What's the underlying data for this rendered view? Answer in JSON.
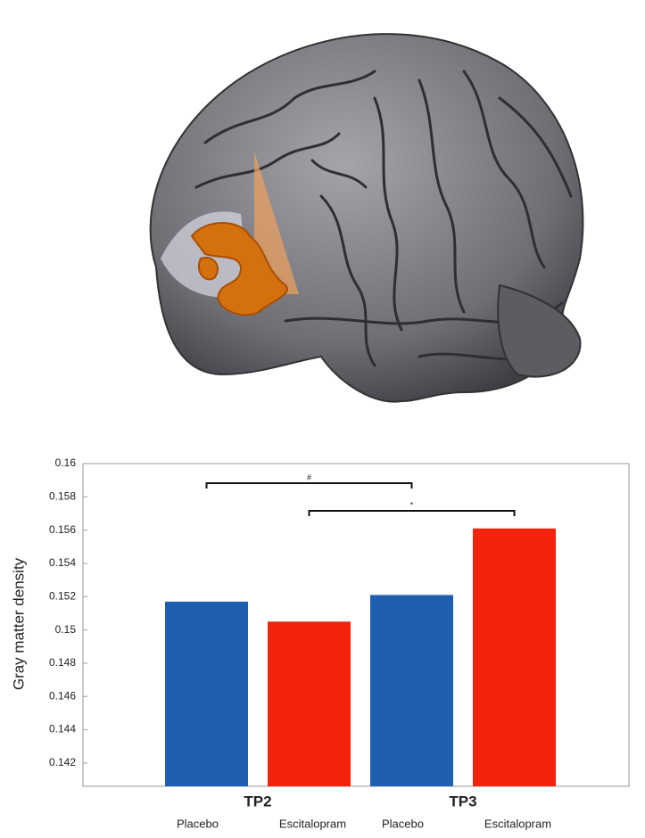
{
  "chart_data": {
    "type": "bar",
    "y_label": "Gray matter density",
    "categories": [
      "TP2",
      "TP3"
    ],
    "series": [
      {
        "name": "Placebo",
        "color": "#1f5fb2",
        "values": [
          0.1517,
          0.1521
        ]
      },
      {
        "name": "Escitalopram",
        "color": "#f5220c",
        "values": [
          0.1505,
          0.1561
        ]
      }
    ],
    "ylim": [
      0.1406,
      0.16
    ],
    "yticks": [
      0.142,
      0.144,
      0.146,
      0.148,
      0.15,
      0.152,
      0.154,
      0.156,
      0.158,
      0.16
    ],
    "significance": [
      {
        "label": "#"
      },
      {
        "label": "*"
      }
    ]
  }
}
